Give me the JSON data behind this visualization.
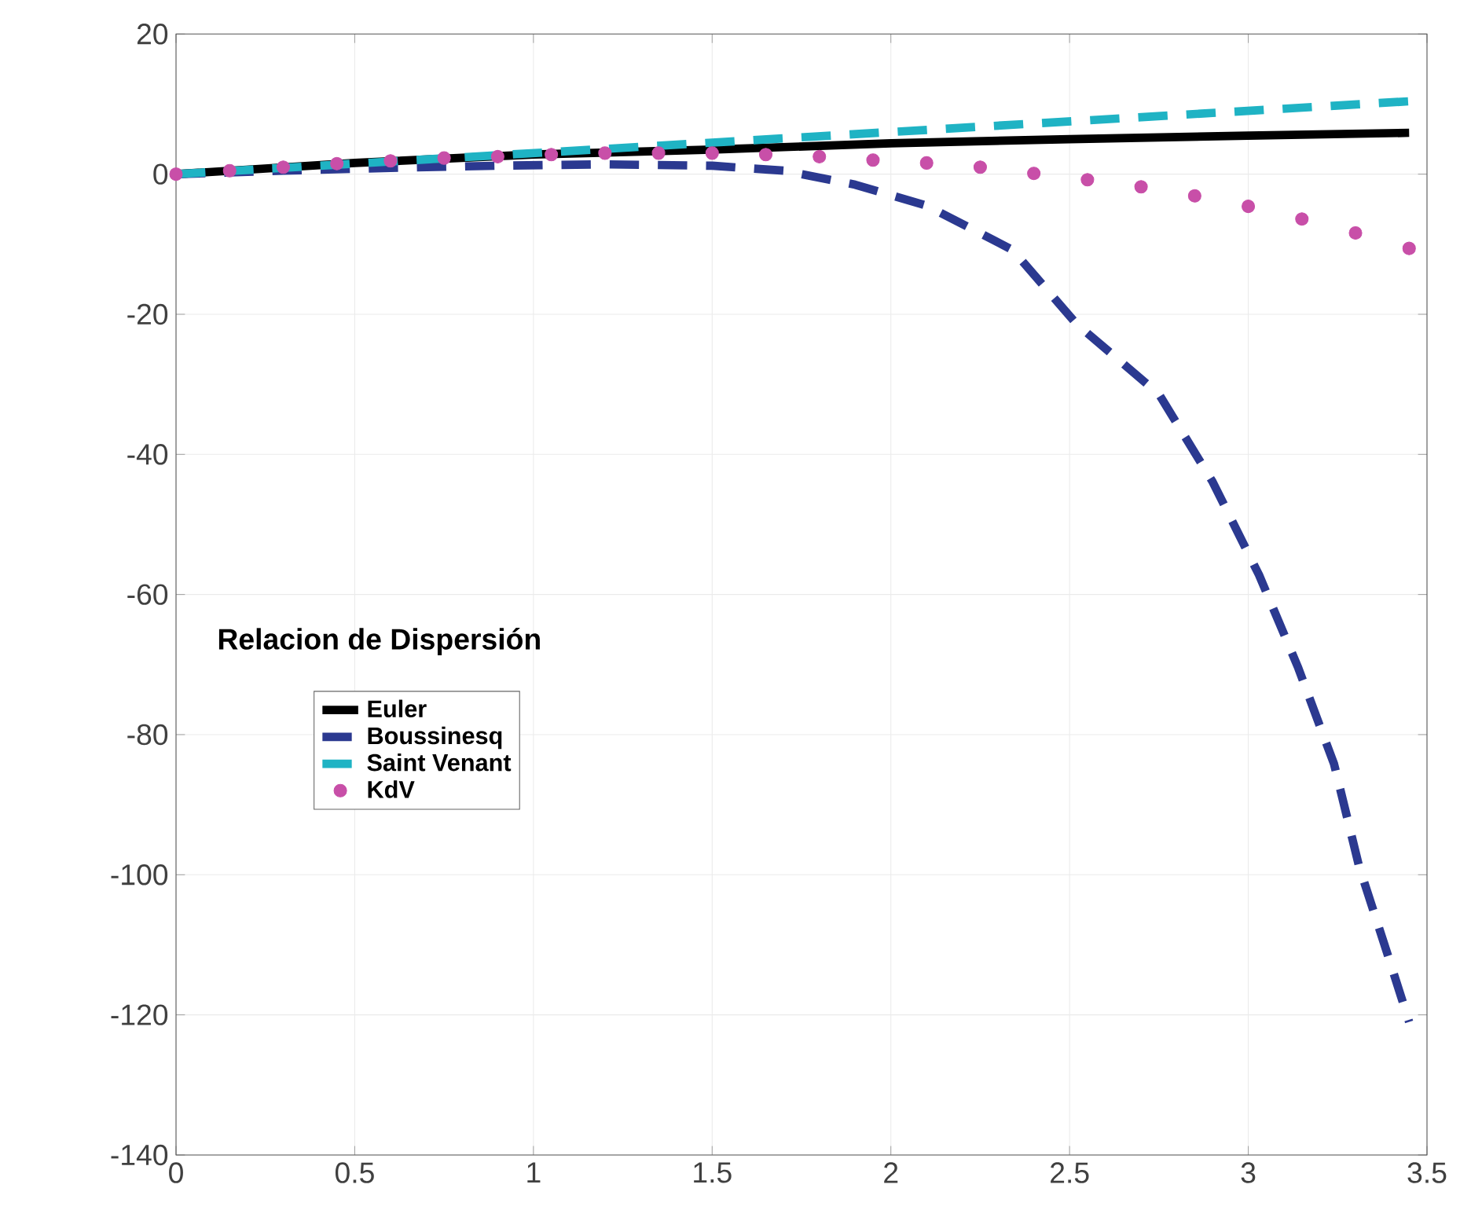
{
  "chart_data": {
    "type": "line",
    "legend_title": "Relacion de Dispersión",
    "xlim": [
      0,
      3.5
    ],
    "ylim": [
      -140,
      20
    ],
    "xticks": [
      0,
      0.5,
      1,
      1.5,
      2,
      2.5,
      3,
      3.5
    ],
    "yticks": [
      -140,
      -120,
      -100,
      -80,
      -60,
      -40,
      -20,
      0,
      20
    ],
    "grid": true,
    "legend": "left",
    "series": [
      {
        "name": "Euler",
        "color": "#000000",
        "line_style": "solid",
        "x": [
          0,
          0.5,
          1,
          1.5,
          2,
          2.5,
          3,
          3.45
        ],
        "values": [
          0,
          1.6,
          2.8,
          3.5,
          4.4,
          5.0,
          5.5,
          5.9
        ]
      },
      {
        "name": "Boussinesq",
        "color": "#2b3990",
        "line_style": "dashed",
        "x": [
          0,
          0.3,
          0.6,
          0.9,
          1.2,
          1.5,
          1.7,
          1.9,
          2.1,
          2.34,
          2.52,
          2.75,
          2.9,
          3.03,
          3.14,
          3.24,
          3.31,
          3.4,
          3.45
        ],
        "values": [
          0,
          0.5,
          0.9,
          1.2,
          1.4,
          1.2,
          0.5,
          -1.5,
          -4.5,
          -10.8,
          -21.4,
          -31.4,
          -43.9,
          -57.2,
          -70.5,
          -84.2,
          -98.8,
          -113,
          -121
        ]
      },
      {
        "name": "Saint Venant",
        "color": "#1fb3c4",
        "line_style": "dashed",
        "x": [
          0,
          1.5,
          3.45
        ],
        "values": [
          0,
          4.5,
          10.4
        ]
      },
      {
        "name": "KdV",
        "color": "#c84fa8",
        "type": "scatter",
        "marker": "circle",
        "x": [
          0,
          0.15,
          0.3,
          0.45,
          0.6,
          0.75,
          0.9,
          1.05,
          1.2,
          1.35,
          1.5,
          1.65,
          1.8,
          1.95,
          2.1,
          2.25,
          2.4,
          2.55,
          2.7,
          2.85,
          3.0,
          3.15,
          3.3,
          3.45
        ],
        "values": [
          0,
          0.5,
          1,
          1.5,
          1.9,
          2.3,
          2.5,
          2.8,
          3,
          3,
          3,
          2.8,
          2.5,
          2,
          1.6,
          1,
          0.1,
          -0.8,
          -1.8,
          -3.1,
          -4.6,
          -6.4,
          -8.4,
          -10.6
        ]
      }
    ]
  }
}
